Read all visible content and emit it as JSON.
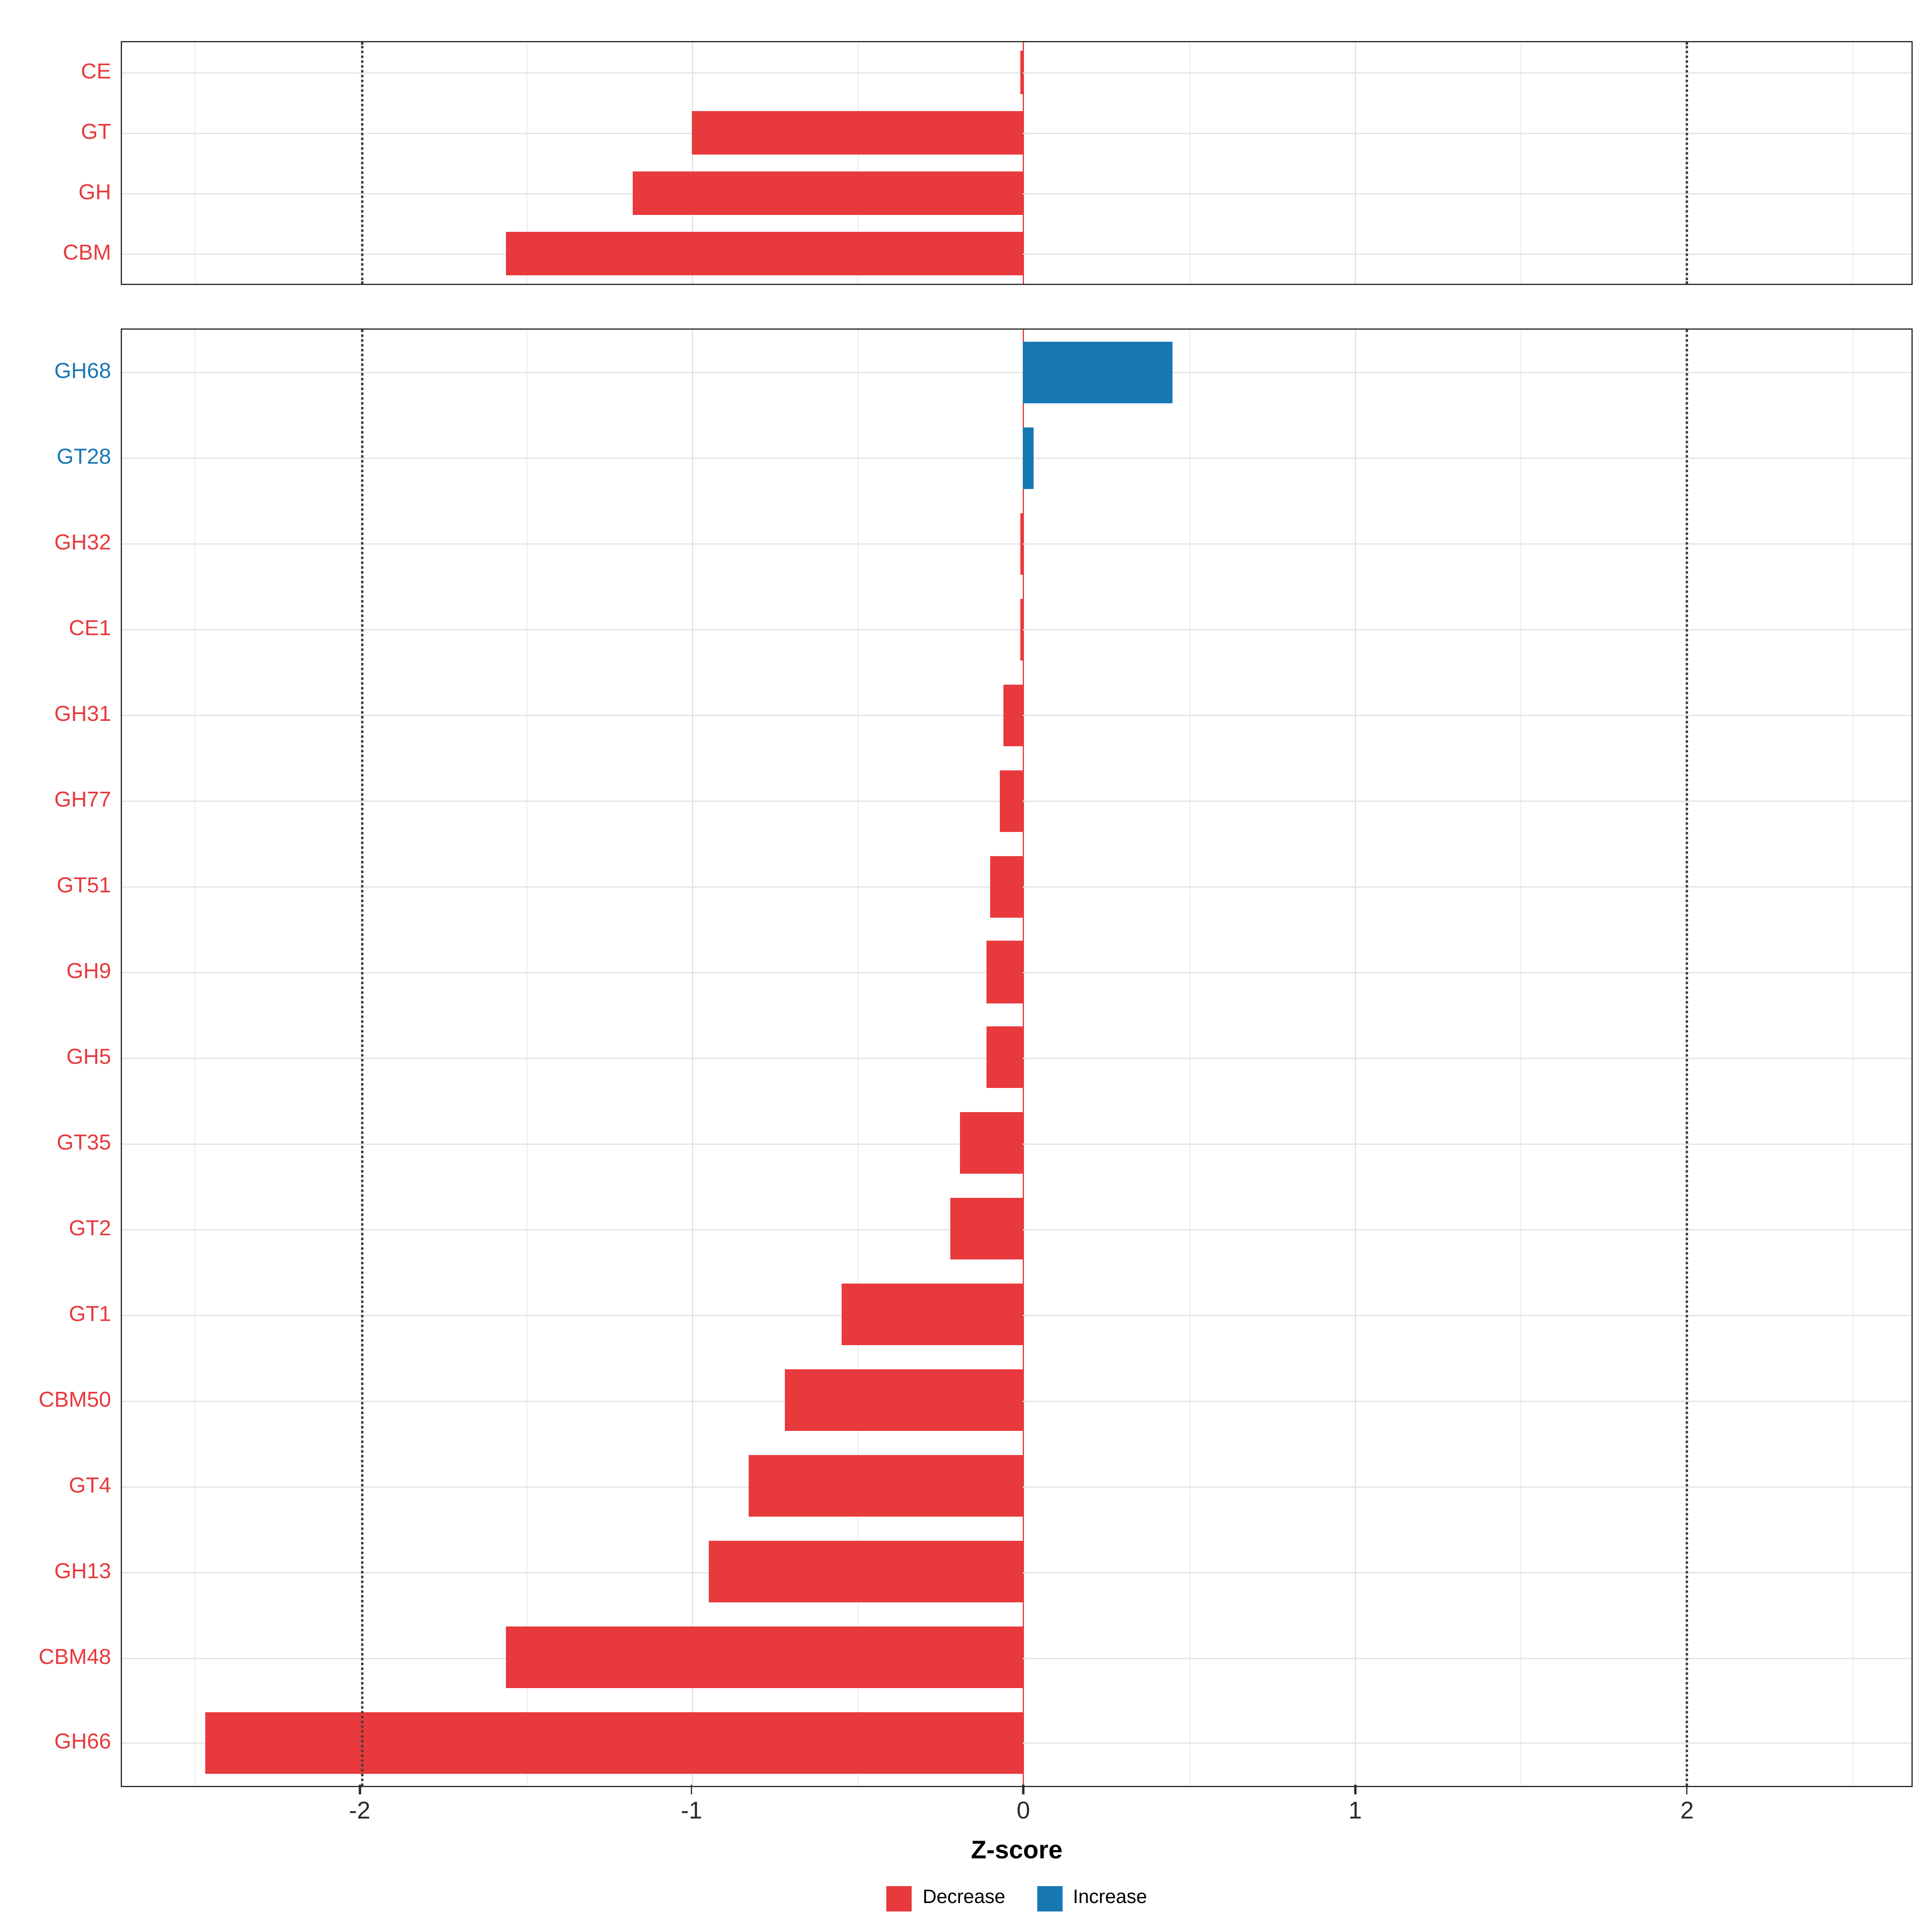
{
  "figure": {
    "background": "#ffffff",
    "panel_border_color": "#2b2b2b",
    "gridline_color": "#e2e2e2"
  },
  "axis": {
    "xlabel": "Z-score",
    "ticks": [
      -2,
      -1,
      0,
      1,
      2
    ],
    "minor_ticks": [
      -2.5,
      -1.5,
      -0.5,
      0.5,
      1.5,
      2.5
    ],
    "xlim": [
      -2.72,
      2.68
    ],
    "dotted_reference_lines": [
      -2,
      2
    ],
    "zero_reference_line": 0,
    "zero_line_color": "#E8393D"
  },
  "legend": {
    "items": [
      {
        "label": "Decrease",
        "color": "#E8393D"
      },
      {
        "label": "Increase",
        "color": "#1878B4"
      }
    ]
  },
  "chart_data": {
    "type": "bar",
    "orientation": "horizontal",
    "title": "",
    "xlabel": "Z-score",
    "ylabel": "",
    "xlim": [
      -2.72,
      2.68
    ],
    "grid": true,
    "legend_position": "bottom",
    "panels": [
      {
        "id": "top",
        "categories": [
          "CE",
          "GT",
          "GH",
          "CBM"
        ],
        "values": [
          -0.01,
          -1.0,
          -1.18,
          -1.56
        ]
      },
      {
        "id": "bottom",
        "categories": [
          "GH68",
          "GT28",
          "GH32",
          "CE1",
          "GH31",
          "GH77",
          "GT51",
          "GH9",
          "GH5",
          "GT35",
          "GT2",
          "GT1",
          "CBM50",
          "GT4",
          "GH13",
          "CBM48",
          "GH66"
        ],
        "values": [
          0.45,
          0.03,
          -0.01,
          -0.01,
          -0.06,
          -0.07,
          -0.1,
          -0.11,
          -0.11,
          -0.19,
          -0.22,
          -0.55,
          -0.72,
          -0.83,
          -0.95,
          -1.56,
          -2.47
        ]
      }
    ],
    "series_colors": {
      "decrease": "#E8393D",
      "increase": "#1878B4"
    }
  }
}
